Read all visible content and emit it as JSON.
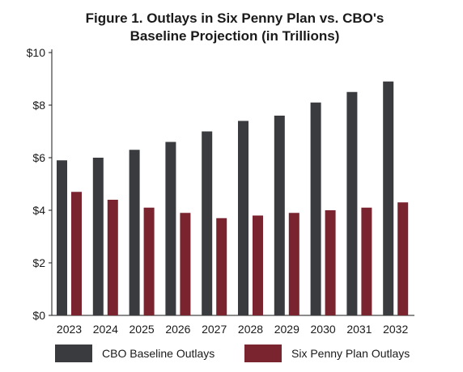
{
  "chart_data": {
    "type": "bar",
    "title_lines": [
      "Figure 1. Outlays in Six Penny Plan vs. CBO's",
      "Baseline Projection (in Trillions)"
    ],
    "categories": [
      "2023",
      "2024",
      "2025",
      "2026",
      "2027",
      "2028",
      "2029",
      "2030",
      "2031",
      "2032"
    ],
    "series": [
      {
        "name": "CBO Baseline Outlays",
        "color": "#3a3b3f",
        "values": [
          5.9,
          6.0,
          6.3,
          6.6,
          7.0,
          7.4,
          7.6,
          8.1,
          8.5,
          8.9
        ]
      },
      {
        "name": "Six Penny Plan Outlays",
        "color": "#7a2430",
        "values": [
          4.7,
          4.4,
          4.1,
          3.9,
          3.7,
          3.8,
          3.9,
          4.0,
          4.1,
          4.3
        ]
      }
    ],
    "ylim": [
      0,
      10
    ],
    "y_ticks": [
      0,
      2,
      4,
      6,
      8,
      10
    ],
    "y_tick_labels": [
      "$0",
      "$2",
      "$4",
      "$6",
      "$8",
      "$10"
    ],
    "grid": false,
    "legend_position": "bottom"
  }
}
